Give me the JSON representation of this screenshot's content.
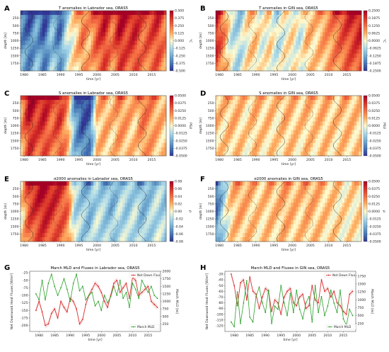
{
  "panels": [
    {
      "id": "A",
      "label": "A",
      "title": "T anomalies in Labrador sea, ORAS5",
      "xlabel": "time [yr]",
      "ylabel": "depth [m]",
      "cb_ticks": [
        "0.500",
        "0.375",
        "0.250",
        "0.125",
        "0.000",
        "-0.125",
        "-0.250",
        "-0.375",
        "-0.500"
      ],
      "cb_unit": "°C",
      "profile": [
        -0.35,
        -0.45,
        -0.3,
        -0.5,
        -0.2,
        -0.45,
        -0.1,
        0.05,
        0.25,
        0.15,
        0.35,
        0.45,
        0.25,
        0.5,
        0.4,
        0.45,
        0.3,
        0.35,
        0.4,
        0.25
      ],
      "vmax": 0.5
    },
    {
      "id": "B",
      "label": "B",
      "title": "T anomalies in GIN sea, ORAS5",
      "xlabel": "time [yr]",
      "ylabel": "depth [m]",
      "cb_ticks": [
        "0.2500",
        "0.1875",
        "0.1250",
        "0.0625",
        "0.0000",
        "-0.0625",
        "-0.1250",
        "-0.1875",
        "-0.2500"
      ],
      "cb_unit": "°C",
      "profile": [
        0.22,
        0.1,
        -0.05,
        -0.08,
        0.02,
        0.05,
        -0.02,
        0.03,
        -0.05,
        0.0,
        0.02,
        -0.04,
        0.06,
        0.04,
        0.08,
        0.1,
        0.14,
        0.18,
        0.2,
        0.22
      ],
      "vmax": 0.25
    },
    {
      "id": "C",
      "label": "C",
      "title": "S anomalies in Labrador sea, ORAS5",
      "xlabel": "time [yr]",
      "ylabel": "depth [m]",
      "cb_ticks": [
        "0.0500",
        "0.0375",
        "0.0250",
        "0.0125",
        "0.0000",
        "-0.0125",
        "-0.0250",
        "-0.0375",
        "-0.0500"
      ],
      "cb_unit": "PSU",
      "profile": [
        0.02,
        0.05,
        0.04,
        0.045,
        0.03,
        0.04,
        0.02,
        -0.03,
        -0.05,
        -0.045,
        0.01,
        0.015,
        0.01,
        0.02,
        0.015,
        0.01,
        0.025,
        0.02,
        0.015,
        0.01
      ],
      "vmax": 0.05
    },
    {
      "id": "D",
      "label": "D",
      "title": "S anomalies in GIN sea, ORAS5",
      "xlabel": "time [yr]",
      "ylabel": "depth [m]",
      "cb_ticks": [
        "0.0500",
        "0.0375",
        "0.0250",
        "0.0125",
        "0.0000",
        "-0.0125",
        "-0.0250",
        "-0.0375",
        "-0.0500"
      ],
      "cb_unit": "PSU",
      "profile": [
        0.01,
        0.008,
        0.012,
        0.01,
        0.005,
        0.012,
        0.008,
        0.01,
        0.006,
        0.012,
        0.01,
        0.008,
        0.011,
        0.009,
        0.012,
        0.01,
        0.008,
        0.012,
        0.01,
        0.009
      ],
      "vmax": 0.05
    },
    {
      "id": "E",
      "label": "E",
      "title": "σ2000 anomalies in Labrador sea, ORAS5",
      "xlabel": "time [yr]",
      "ylabel": "depth [m]",
      "cb_ticks": [
        "0.08",
        "0.06",
        "0.04",
        "0.02",
        "0.00",
        "-0.02",
        "-0.04",
        "-0.06",
        "-0.08"
      ],
      "cb_unit": "ρ",
      "profile": [
        0.01,
        0.06,
        0.07,
        0.08,
        0.07,
        0.06,
        0.05,
        -0.02,
        -0.03,
        -0.04,
        -0.02,
        -0.03,
        -0.04,
        -0.02,
        -0.03,
        -0.02,
        -0.04,
        -0.03,
        -0.02,
        -0.03
      ],
      "vmax": 0.08
    },
    {
      "id": "F",
      "label": "F",
      "title": "σ2000 anomalies in GIN sea, ORAS5",
      "xlabel": "time [yr]",
      "ylabel": "depth [m]",
      "cb_ticks": [
        "0.0500",
        "0.0375",
        "0.0250",
        "0.0125",
        "0.0000",
        "-0.0125",
        "-0.0250",
        "-0.0375",
        "-0.0500"
      ],
      "cb_unit": "ρ",
      "profile": [
        -0.04,
        -0.01,
        0.01,
        0.015,
        0.012,
        0.01,
        0.008,
        0.012,
        0.01,
        0.015,
        0.012,
        0.01,
        0.014,
        0.012,
        0.01,
        0.008,
        0.006,
        0.004,
        0.005,
        0.006
      ],
      "vmax": 0.05
    }
  ],
  "heat_y_ticks": [
    "250",
    "500",
    "750",
    "1000",
    "1250",
    "1500",
    "1750"
  ],
  "heat_x_ticks": [
    "1980",
    "1985",
    "1990",
    "1995",
    "2000",
    "2005",
    "2010",
    "2015"
  ],
  "chart_data": [
    {
      "id": "G",
      "label": "G",
      "type": "line",
      "title": "March MLD and Fluxes in Labrador sea, ORAS5",
      "xlabel": "time [yr]",
      "ylabel": "Net Downward Heat Fluxes [W/m²]",
      "ylabel2": "March MLD [m]",
      "x": [
        1979,
        1980,
        1981,
        1982,
        1983,
        1984,
        1985,
        1986,
        1987,
        1988,
        1989,
        1990,
        1991,
        1992,
        1993,
        1994,
        1995,
        1996,
        1997,
        1998,
        1999,
        2000,
        2001,
        2002,
        2003,
        2004,
        2005,
        2006,
        2007,
        2008,
        2009,
        2010,
        2011,
        2012,
        2013,
        2014,
        2015,
        2016,
        2017,
        2018
      ],
      "xlim": [
        1977,
        2019
      ],
      "ylim": [
        -220,
        -20
      ],
      "ylim2": [
        0,
        2000
      ],
      "yticks": [
        "-25",
        "-50",
        "-75",
        "-100",
        "-125",
        "-150",
        "-175",
        "-200"
      ],
      "yticks2": [
        "2000",
        "1750",
        "1500",
        "1250",
        "1000",
        "750",
        "500",
        "250"
      ],
      "xticks": [
        "1980",
        "1985",
        "1990",
        "1995",
        "2000",
        "2005",
        "2010",
        "2015"
      ],
      "legend_placement": "right",
      "series": [
        {
          "name": "Net Down Flux",
          "color": "#d62728",
          "axis": "left",
          "values": [
            -150,
            -120,
            -155,
            -200,
            -195,
            -160,
            -145,
            -175,
            -120,
            -140,
            -155,
            -110,
            -120,
            -145,
            -195,
            -180,
            -130,
            -100,
            -80,
            -60,
            -70,
            -90,
            -120,
            -140,
            -100,
            -60,
            -50,
            -90,
            -75,
            -60,
            -110,
            -40,
            -50,
            -100,
            -90,
            -80,
            -70,
            -120,
            -130,
            -140
          ]
        },
        {
          "name": "March MLD",
          "color": "#2ca02c",
          "axis": "right",
          "values": [
            1250,
            1050,
            1700,
            1050,
            1600,
            1900,
            1500,
            1200,
            1450,
            1750,
            1400,
            1000,
            1600,
            1900,
            1350,
            1500,
            1050,
            1200,
            1300,
            850,
            1000,
            700,
            1200,
            950,
            1150,
            1500,
            1200,
            1700,
            1100,
            1300,
            800,
            1600,
            1400,
            1100,
            1700,
            1500,
            1300,
            1500,
            1200,
            1100
          ]
        }
      ]
    },
    {
      "id": "H",
      "label": "H",
      "type": "line",
      "title": "March MLD and Fluxes in GIN sea, ORAS5",
      "xlabel": "time [yr]",
      "ylabel": "Net Downward Heat Fluxes [W/m²]",
      "ylabel2": "March MLD [m]",
      "x": [
        1979,
        1980,
        1981,
        1982,
        1983,
        1984,
        1985,
        1986,
        1987,
        1988,
        1989,
        1990,
        1991,
        1992,
        1993,
        1994,
        1995,
        1996,
        1997,
        1998,
        1999,
        2000,
        2001,
        2002,
        2003,
        2004,
        2005,
        2006,
        2007,
        2008,
        2009,
        2010,
        2011,
        2012,
        2013,
        2014,
        2015,
        2016,
        2017,
        2018
      ],
      "xlim": [
        1977,
        2019
      ],
      "ylim": [
        -130,
        -25
      ],
      "ylim2": [
        0,
        1900
      ],
      "yticks": [
        "-30",
        "-40",
        "-50",
        "-60",
        "-70",
        "-80",
        "-90",
        "-100",
        "-110",
        "-120"
      ],
      "yticks2": [
        "1750",
        "1500",
        "1250",
        "1000",
        "750",
        "500",
        "250"
      ],
      "xticks": [
        "1980",
        "1985",
        "1990",
        "1995",
        "2000",
        "2005",
        "2010",
        "2015"
      ],
      "legend_placement": "top-right (flux), bottom-right (MLD)",
      "series": [
        {
          "name": "Net Down Flux",
          "color": "#d62728",
          "axis": "left",
          "values": [
            -30,
            -50,
            -85,
            -45,
            -40,
            -75,
            -35,
            -60,
            -65,
            -90,
            -70,
            -55,
            -60,
            -95,
            -75,
            -80,
            -100,
            -70,
            -60,
            -55,
            -80,
            -85,
            -70,
            -65,
            -90,
            -85,
            -50,
            -75,
            -80,
            -40,
            -60,
            -55,
            -70,
            -60,
            -80,
            -85,
            -95,
            -100,
            -65,
            -60
          ]
        },
        {
          "name": "March MLD",
          "color": "#2ca02c",
          "axis": "right",
          "values": [
            300,
            150,
            1250,
            250,
            900,
            1600,
            450,
            300,
            1100,
            1400,
            900,
            600,
            1300,
            250,
            800,
            700,
            1450,
            900,
            500,
            1200,
            600,
            1300,
            700,
            400,
            900,
            1100,
            300,
            1450,
            600,
            1100,
            500,
            800,
            1300,
            900,
            600,
            1300,
            400,
            200,
            700,
            500
          ]
        }
      ]
    }
  ]
}
